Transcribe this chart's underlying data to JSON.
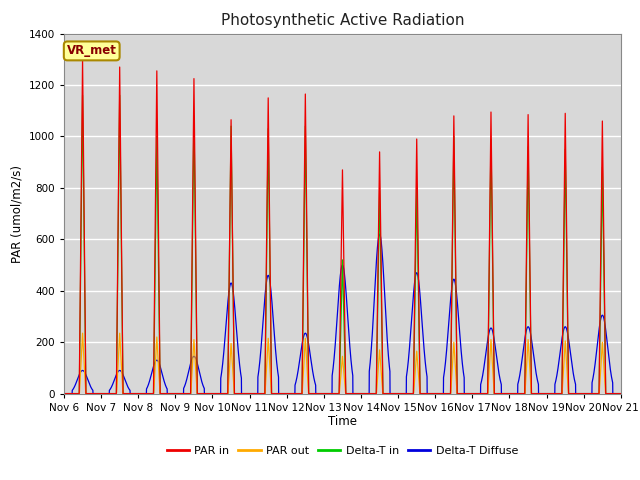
{
  "title": "Photosynthetic Active Radiation",
  "xlabel": "Time",
  "ylabel": "PAR (umol/m2/s)",
  "ylim": [
    0,
    1400
  ],
  "bg_color": "#d8d8d8",
  "station_label": "VR_met",
  "x_tick_labels": [
    "Nov 6",
    "Nov 7",
    "Nov 8",
    "Nov 9",
    "Nov 10",
    "Nov 11",
    "Nov 12",
    "Nov 13",
    "Nov 14",
    "Nov 15",
    "Nov 16",
    "Nov 17",
    "Nov 18",
    "Nov 19",
    "Nov 20",
    "Nov 21"
  ],
  "legend_labels": [
    "PAR in",
    "PAR out",
    "Delta-T in",
    "Delta-T Diffuse"
  ],
  "line_colors": [
    "#ee0000",
    "#ffaa00",
    "#00cc00",
    "#0000dd"
  ],
  "par_in_peaks": [
    1300,
    1270,
    1255,
    1225,
    1065,
    1150,
    1165,
    870,
    940,
    990,
    1080,
    1095,
    1085,
    1090,
    1060
  ],
  "par_out_peaks": [
    235,
    235,
    220,
    210,
    195,
    215,
    215,
    145,
    170,
    165,
    200,
    210,
    210,
    205,
    200
  ],
  "delta_t_in_peaks": [
    1160,
    1160,
    1000,
    1080,
    1040,
    1030,
    1040,
    520,
    790,
    800,
    1000,
    990,
    960,
    950,
    880
  ],
  "delta_t_diff_peaks": [
    90,
    90,
    130,
    145,
    430,
    460,
    235,
    500,
    620,
    470,
    445,
    255,
    260,
    260,
    305
  ]
}
